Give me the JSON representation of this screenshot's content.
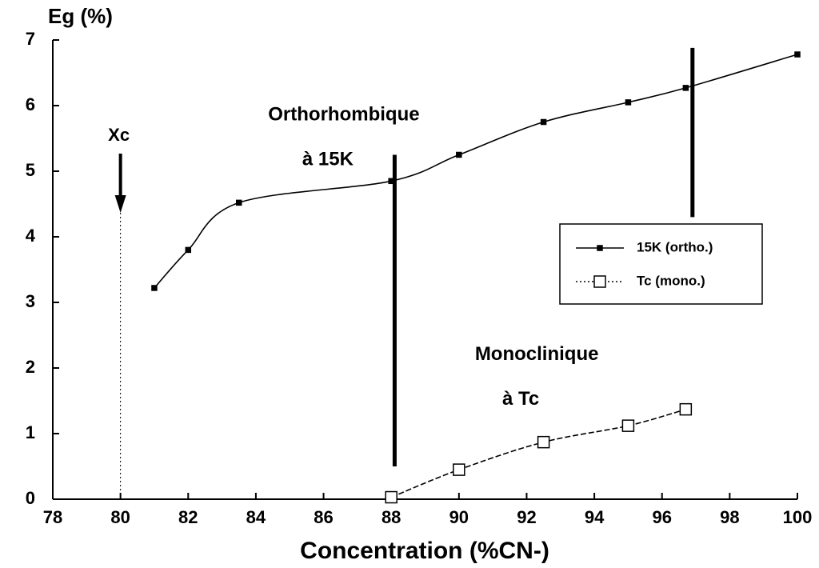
{
  "chart_data": {
    "type": "line",
    "ylabel": "Eg (%)",
    "xlabel": "Concentration (%CN-)",
    "xlim": [
      78,
      100
    ],
    "xticks": [
      78,
      80,
      82,
      84,
      86,
      88,
      90,
      92,
      94,
      96,
      98,
      100
    ],
    "ylim": [
      0,
      7
    ],
    "yticks": [
      0,
      1,
      2,
      3,
      4,
      5,
      6,
      7
    ],
    "series": [
      {
        "name": "15K (ortho.)",
        "color": "#000000",
        "dash": false,
        "marker": "filled-square",
        "x": [
          81,
          82,
          83.5,
          88,
          90,
          92.5,
          95,
          96.7,
          100
        ],
        "values": [
          3.22,
          3.8,
          4.52,
          4.85,
          5.25,
          5.75,
          6.05,
          6.27,
          6.78
        ]
      },
      {
        "name": "Tc (mono.)",
        "color": "#000000",
        "dash": true,
        "marker": "open-square",
        "x": [
          88,
          90,
          92.5,
          95,
          96.7
        ],
        "values": [
          0.03,
          0.45,
          0.87,
          1.12,
          1.37
        ]
      }
    ],
    "annotations": [
      {
        "lines": [
          "Orthorhombique",
          "à 15K"
        ],
        "x": 86.6,
        "y": 5.85
      },
      {
        "lines": [
          "Monoclinique",
          "à Tc"
        ],
        "x": 92.3,
        "y": 2.2
      }
    ],
    "arrow": {
      "text": "Xc",
      "x": 80,
      "y": 5
    },
    "boundaries": [
      {
        "x": 88.1,
        "y": [
          0.5,
          5.25
        ]
      },
      {
        "x": 96.9,
        "y": [
          4.3,
          6.88
        ]
      }
    ],
    "legend": "right"
  }
}
